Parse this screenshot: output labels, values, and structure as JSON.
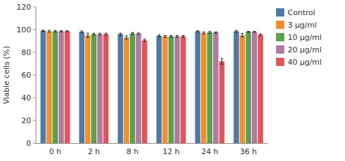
{
  "chart_data": {
    "type": "bar",
    "y_label": "Viable cells (%)",
    "categories": [
      "0 h",
      "2 h",
      "8 h",
      "12 h",
      "24 h",
      "36 h"
    ],
    "series": [
      {
        "name": "Control",
        "values": [
          99.0,
          98.0,
          96.0,
          94.5,
          98.5,
          98.5
        ],
        "errors": [
          0.5,
          0.8,
          0.8,
          0.8,
          0.5,
          0.8
        ]
      },
      {
        "name": "3 μg/ml",
        "values": [
          98.5,
          95.0,
          93.0,
          94.0,
          97.0,
          95.0
        ],
        "errors": [
          0.8,
          1.8,
          1.5,
          0.8,
          0.8,
          1.5
        ]
      },
      {
        "name": "10 μg/ml",
        "values": [
          98.5,
          96.0,
          96.5,
          94.0,
          97.5,
          98.0
        ],
        "errors": [
          0.5,
          0.8,
          0.8,
          0.8,
          0.8,
          0.5
        ]
      },
      {
        "name": "20 μg/ml",
        "values": [
          98.5,
          96.0,
          96.5,
          94.0,
          97.5,
          98.0
        ],
        "errors": [
          0.5,
          0.8,
          0.5,
          0.8,
          0.5,
          0.5
        ]
      },
      {
        "name": "40 μg/ml",
        "values": [
          98.5,
          96.0,
          90.5,
          94.0,
          72.0,
          95.5
        ],
        "errors": [
          0.5,
          0.8,
          1.0,
          0.8,
          2.5,
          0.8
        ]
      }
    ],
    "ylim": [
      0,
      120
    ],
    "yticks": [
      0,
      20,
      40,
      60,
      80,
      100,
      120
    ],
    "grid": false,
    "legend": "upper right"
  }
}
